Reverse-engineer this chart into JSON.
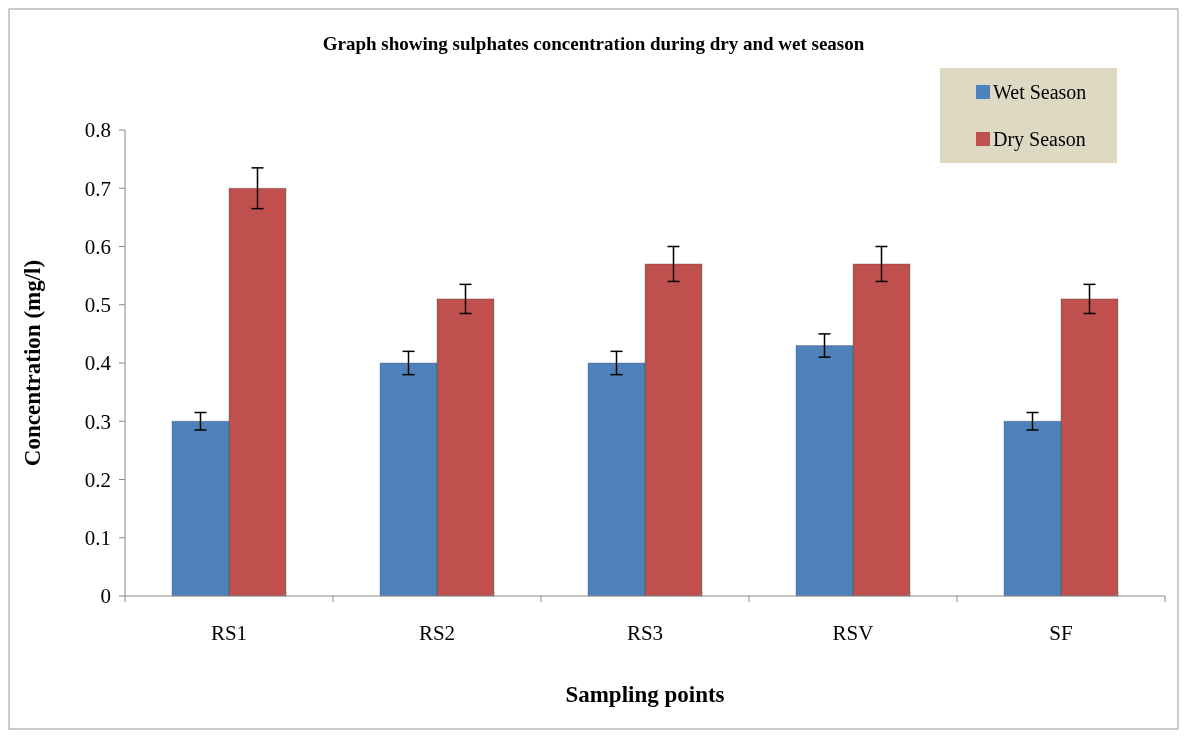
{
  "chart_data": {
    "type": "bar",
    "title": "Graph showing sulphates concentration during dry and wet season",
    "xlabel": "Sampling points",
    "ylabel": "Concentration (mg/l)",
    "categories": [
      "RS1",
      "RS2",
      "RS3",
      "RSV",
      "SF"
    ],
    "series": [
      {
        "name": "Wet Season",
        "color": "#4f81bd",
        "values": [
          0.3,
          0.4,
          0.4,
          0.43,
          0.3
        ],
        "errors": [
          0.015,
          0.02,
          0.02,
          0.02,
          0.015
        ]
      },
      {
        "name": "Dry Season",
        "color": "#c0504d",
        "values": [
          0.7,
          0.51,
          0.57,
          0.57,
          0.51
        ],
        "errors": [
          0.035,
          0.025,
          0.03,
          0.03,
          0.025
        ]
      }
    ],
    "ylim": [
      0,
      0.8
    ],
    "yticks": [
      0,
      0.1,
      0.2,
      0.3,
      0.4,
      0.5,
      0.6,
      0.7,
      0.8
    ],
    "grid": false,
    "legend": "top right"
  }
}
